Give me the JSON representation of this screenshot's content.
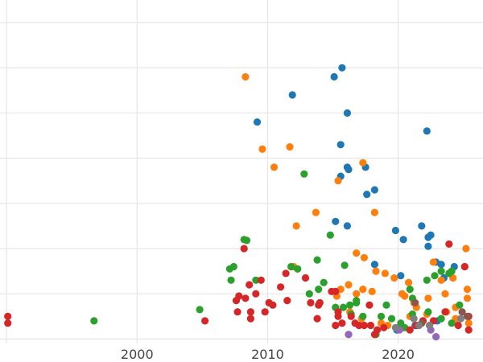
{
  "chart_data": {
    "type": "scatter",
    "title": "",
    "xlabel": "",
    "ylabel": "",
    "xlim": [
      1989.5,
      2026.5
    ],
    "ylim": [
      -0.1,
      7.5
    ],
    "x_ticks": [
      1990,
      2000,
      2010,
      2020
    ],
    "x_tick_labels": [
      "",
      "2000",
      "2010",
      "2020"
    ],
    "y_ticks": [
      0,
      1,
      2,
      3,
      4,
      5,
      6,
      7
    ],
    "y_tick_labels": [
      "",
      "",
      "",
      "",
      "",
      "",
      "",
      ""
    ],
    "grid": true,
    "legend": "none",
    "series": [
      {
        "color": "#1f77b4",
        "points": [
          [
            2011.9,
            5.4
          ],
          [
            2015.7,
            6
          ],
          [
            2015.1,
            5.8
          ],
          [
            2009.2,
            4.8
          ],
          [
            2016.1,
            5
          ],
          [
            2015.6,
            4.3
          ],
          [
            2016.1,
            3.8
          ],
          [
            2017.5,
            3.8
          ],
          [
            2016.2,
            3.75
          ],
          [
            2015.6,
            3.6
          ],
          [
            2018.2,
            3.3
          ],
          [
            2017.6,
            3.2
          ],
          [
            2022.2,
            4.6
          ],
          [
            2015.2,
            2.6
          ],
          [
            2016.1,
            2.5
          ],
          [
            2019.8,
            2.4
          ],
          [
            2020.4,
            2.2
          ],
          [
            2021.8,
            2.5
          ],
          [
            2022.5,
            2.3
          ],
          [
            2022.3,
            2.05
          ],
          [
            2022.3,
            2.25
          ],
          [
            2022.9,
            1.7
          ],
          [
            2023.3,
            1.65
          ],
          [
            2024.3,
            1.6
          ],
          [
            2018.2,
            1.65
          ],
          [
            2020.2,
            1.4
          ],
          [
            2023.5,
            1.35
          ],
          [
            2016.2,
            0.1
          ],
          [
            2019.9,
            0.2
          ],
          [
            2021.3,
            0.3
          ],
          [
            2023,
            0.4
          ]
        ]
      },
      {
        "color": "#ff7f0e",
        "points": [
          [
            2008.3,
            5.8
          ],
          [
            2009.6,
            4.2
          ],
          [
            2011.7,
            4.25
          ],
          [
            2010.5,
            3.8
          ],
          [
            2017.3,
            3.9
          ],
          [
            2015.4,
            3.5
          ],
          [
            2013.7,
            2.8
          ],
          [
            2018.2,
            2.8
          ],
          [
            2012.2,
            2.5
          ],
          [
            2016.8,
            1.9
          ],
          [
            2017.4,
            1.8
          ],
          [
            2012.3,
            1.55
          ],
          [
            2012,
            1.6
          ],
          [
            2018.3,
            1.5
          ],
          [
            2019,
            1.45
          ],
          [
            2019.7,
            1.35
          ],
          [
            2015.6,
            1.1
          ],
          [
            2016.2,
            1.2
          ],
          [
            2016.8,
            1
          ],
          [
            2015.3,
            0.95
          ],
          [
            2017.3,
            1.1
          ],
          [
            2018,
            1.05
          ],
          [
            2020.3,
            1
          ],
          [
            2020.5,
            0.95
          ],
          [
            2020.8,
            1.25
          ],
          [
            2021.2,
            0.8
          ],
          [
            2022.3,
            0.9
          ],
          [
            2022.7,
            1.7
          ],
          [
            2023.3,
            1.3
          ],
          [
            2024.2,
            1.35
          ],
          [
            2025.1,
            1.6
          ],
          [
            2025.2,
            2
          ],
          [
            2025.3,
            1.1
          ],
          [
            2025.3,
            0.9
          ],
          [
            2023.6,
            1
          ],
          [
            2024.4,
            0.7
          ],
          [
            2022.2,
            0.55
          ],
          [
            2021.4,
            0.7
          ],
          [
            2019.2,
            0.3
          ],
          [
            2017.2,
            0.45
          ],
          [
            2018.7,
            0.35
          ],
          [
            2020.9,
            0.5
          ],
          [
            2023.7,
            0.6
          ],
          [
            2024.4,
            0.45
          ],
          [
            2025.4,
            0.35
          ],
          [
            2016.3,
            0.6
          ]
        ]
      },
      {
        "color": "#2ca02c",
        "points": [
          [
            1996.7,
            0.4
          ],
          [
            2004.8,
            0.65
          ],
          [
            2007.2,
            1.3
          ],
          [
            2007.4,
            1.6
          ],
          [
            2007.1,
            1.55
          ],
          [
            2008.2,
            2.2
          ],
          [
            2008.4,
            2.18
          ],
          [
            2009.1,
            1.3
          ],
          [
            2012.8,
            3.65
          ],
          [
            2014.8,
            2.3
          ],
          [
            2013.8,
            1.75
          ],
          [
            2015.9,
            1.63
          ],
          [
            2011.8,
            1.6
          ],
          [
            2012.3,
            1.55
          ],
          [
            2014.3,
            1.25
          ],
          [
            2013.2,
            1
          ],
          [
            2013.9,
            1.1
          ],
          [
            2015.2,
            0.7
          ],
          [
            2015.8,
            0.7
          ],
          [
            2016.3,
            0.75
          ],
          [
            2016.8,
            0.8
          ],
          [
            2016.8,
            0.85
          ],
          [
            2019.1,
            0.75
          ],
          [
            2020.9,
            1.1
          ],
          [
            2021.1,
            0.9
          ],
          [
            2022.2,
            1.3
          ],
          [
            2022.8,
            1.4
          ],
          [
            2023.3,
            1.5
          ],
          [
            2023.9,
            1.45
          ],
          [
            2024.1,
            1.5
          ],
          [
            2017.3,
            0.5
          ],
          [
            2018.7,
            0.5
          ],
          [
            2019.5,
            0.45
          ],
          [
            2020.2,
            0.35
          ],
          [
            2021.1,
            0.55
          ],
          [
            2021.9,
            0.4
          ],
          [
            2022.3,
            0.6
          ],
          [
            2023.3,
            0.45
          ],
          [
            2024.1,
            0.35
          ],
          [
            2024.7,
            0.75
          ],
          [
            2018.3,
            0.1
          ],
          [
            2016.4,
            0.55
          ],
          [
            2020.5,
            0.25
          ]
        ]
      },
      {
        "color": "#d62728",
        "points": [
          [
            1990.1,
            0.5
          ],
          [
            1990.1,
            0.35
          ],
          [
            2005.2,
            0.4
          ],
          [
            2008.2,
            2
          ],
          [
            2008.6,
            1.2
          ],
          [
            2009.1,
            1
          ],
          [
            2009.5,
            1.3
          ],
          [
            2010.1,
            0.8
          ],
          [
            2010.4,
            0.75
          ],
          [
            2011,
            1.15
          ],
          [
            2011.5,
            0.85
          ],
          [
            2007.8,
            0.95
          ],
          [
            2008.3,
            0.9
          ],
          [
            2007.6,
            0.85
          ],
          [
            2008.7,
            0.6
          ],
          [
            2008.7,
            0.45
          ],
          [
            2007.7,
            0.6
          ],
          [
            2009.8,
            0.6
          ],
          [
            2011.4,
            1.45
          ],
          [
            2012.9,
            1.35
          ],
          [
            2013.3,
            0.8
          ],
          [
            2013.9,
            0.75
          ],
          [
            2014,
            0.8
          ],
          [
            2013.8,
            0.45
          ],
          [
            2014.9,
            1.05
          ],
          [
            2015.2,
            1.05
          ],
          [
            2015.4,
            0.6
          ],
          [
            2015.4,
            0.5
          ],
          [
            2015.7,
            0.35
          ],
          [
            2016.4,
            0.5
          ],
          [
            2016.7,
            0.35
          ],
          [
            2017,
            0.3
          ],
          [
            2017.4,
            0.3
          ],
          [
            2017.9,
            0.3
          ],
          [
            2018.4,
            0.2
          ],
          [
            2018.9,
            0.25
          ],
          [
            2020.9,
            0.2
          ],
          [
            2021.4,
            0.3
          ],
          [
            2021.9,
            0.4
          ],
          [
            2022.7,
            0.4
          ],
          [
            2023.6,
            0.6
          ],
          [
            2024.6,
            0.3
          ],
          [
            2025.4,
            0.2
          ],
          [
            2023.9,
            2.1
          ],
          [
            2025.1,
            1.6
          ],
          [
            2025.4,
            0.5
          ],
          [
            2015.2,
            0.3
          ],
          [
            2018.2,
            0.1
          ],
          [
            2017.8,
            0.75
          ]
        ]
      },
      {
        "color": "#9467bd",
        "points": [
          [
            2016.2,
            0.1
          ],
          [
            2022.5,
            0.2
          ],
          [
            2022.9,
            0.05
          ],
          [
            2020.1,
            0.2
          ]
        ]
      },
      {
        "color": "#8c564b",
        "points": [
          [
            2021.3,
            0.8
          ],
          [
            2024.9,
            0.6
          ],
          [
            2025.3,
            0.5
          ],
          [
            2021.8,
            0.35
          ]
        ]
      },
      {
        "color": "#7f7f7f",
        "points": [
          [
            2019.8,
            0.25
          ],
          [
            2021.6,
            0.3
          ],
          [
            2024.8,
            0.45
          ],
          [
            2021.2,
            0.45
          ],
          [
            2022.4,
            0.3
          ]
        ]
      }
    ]
  }
}
